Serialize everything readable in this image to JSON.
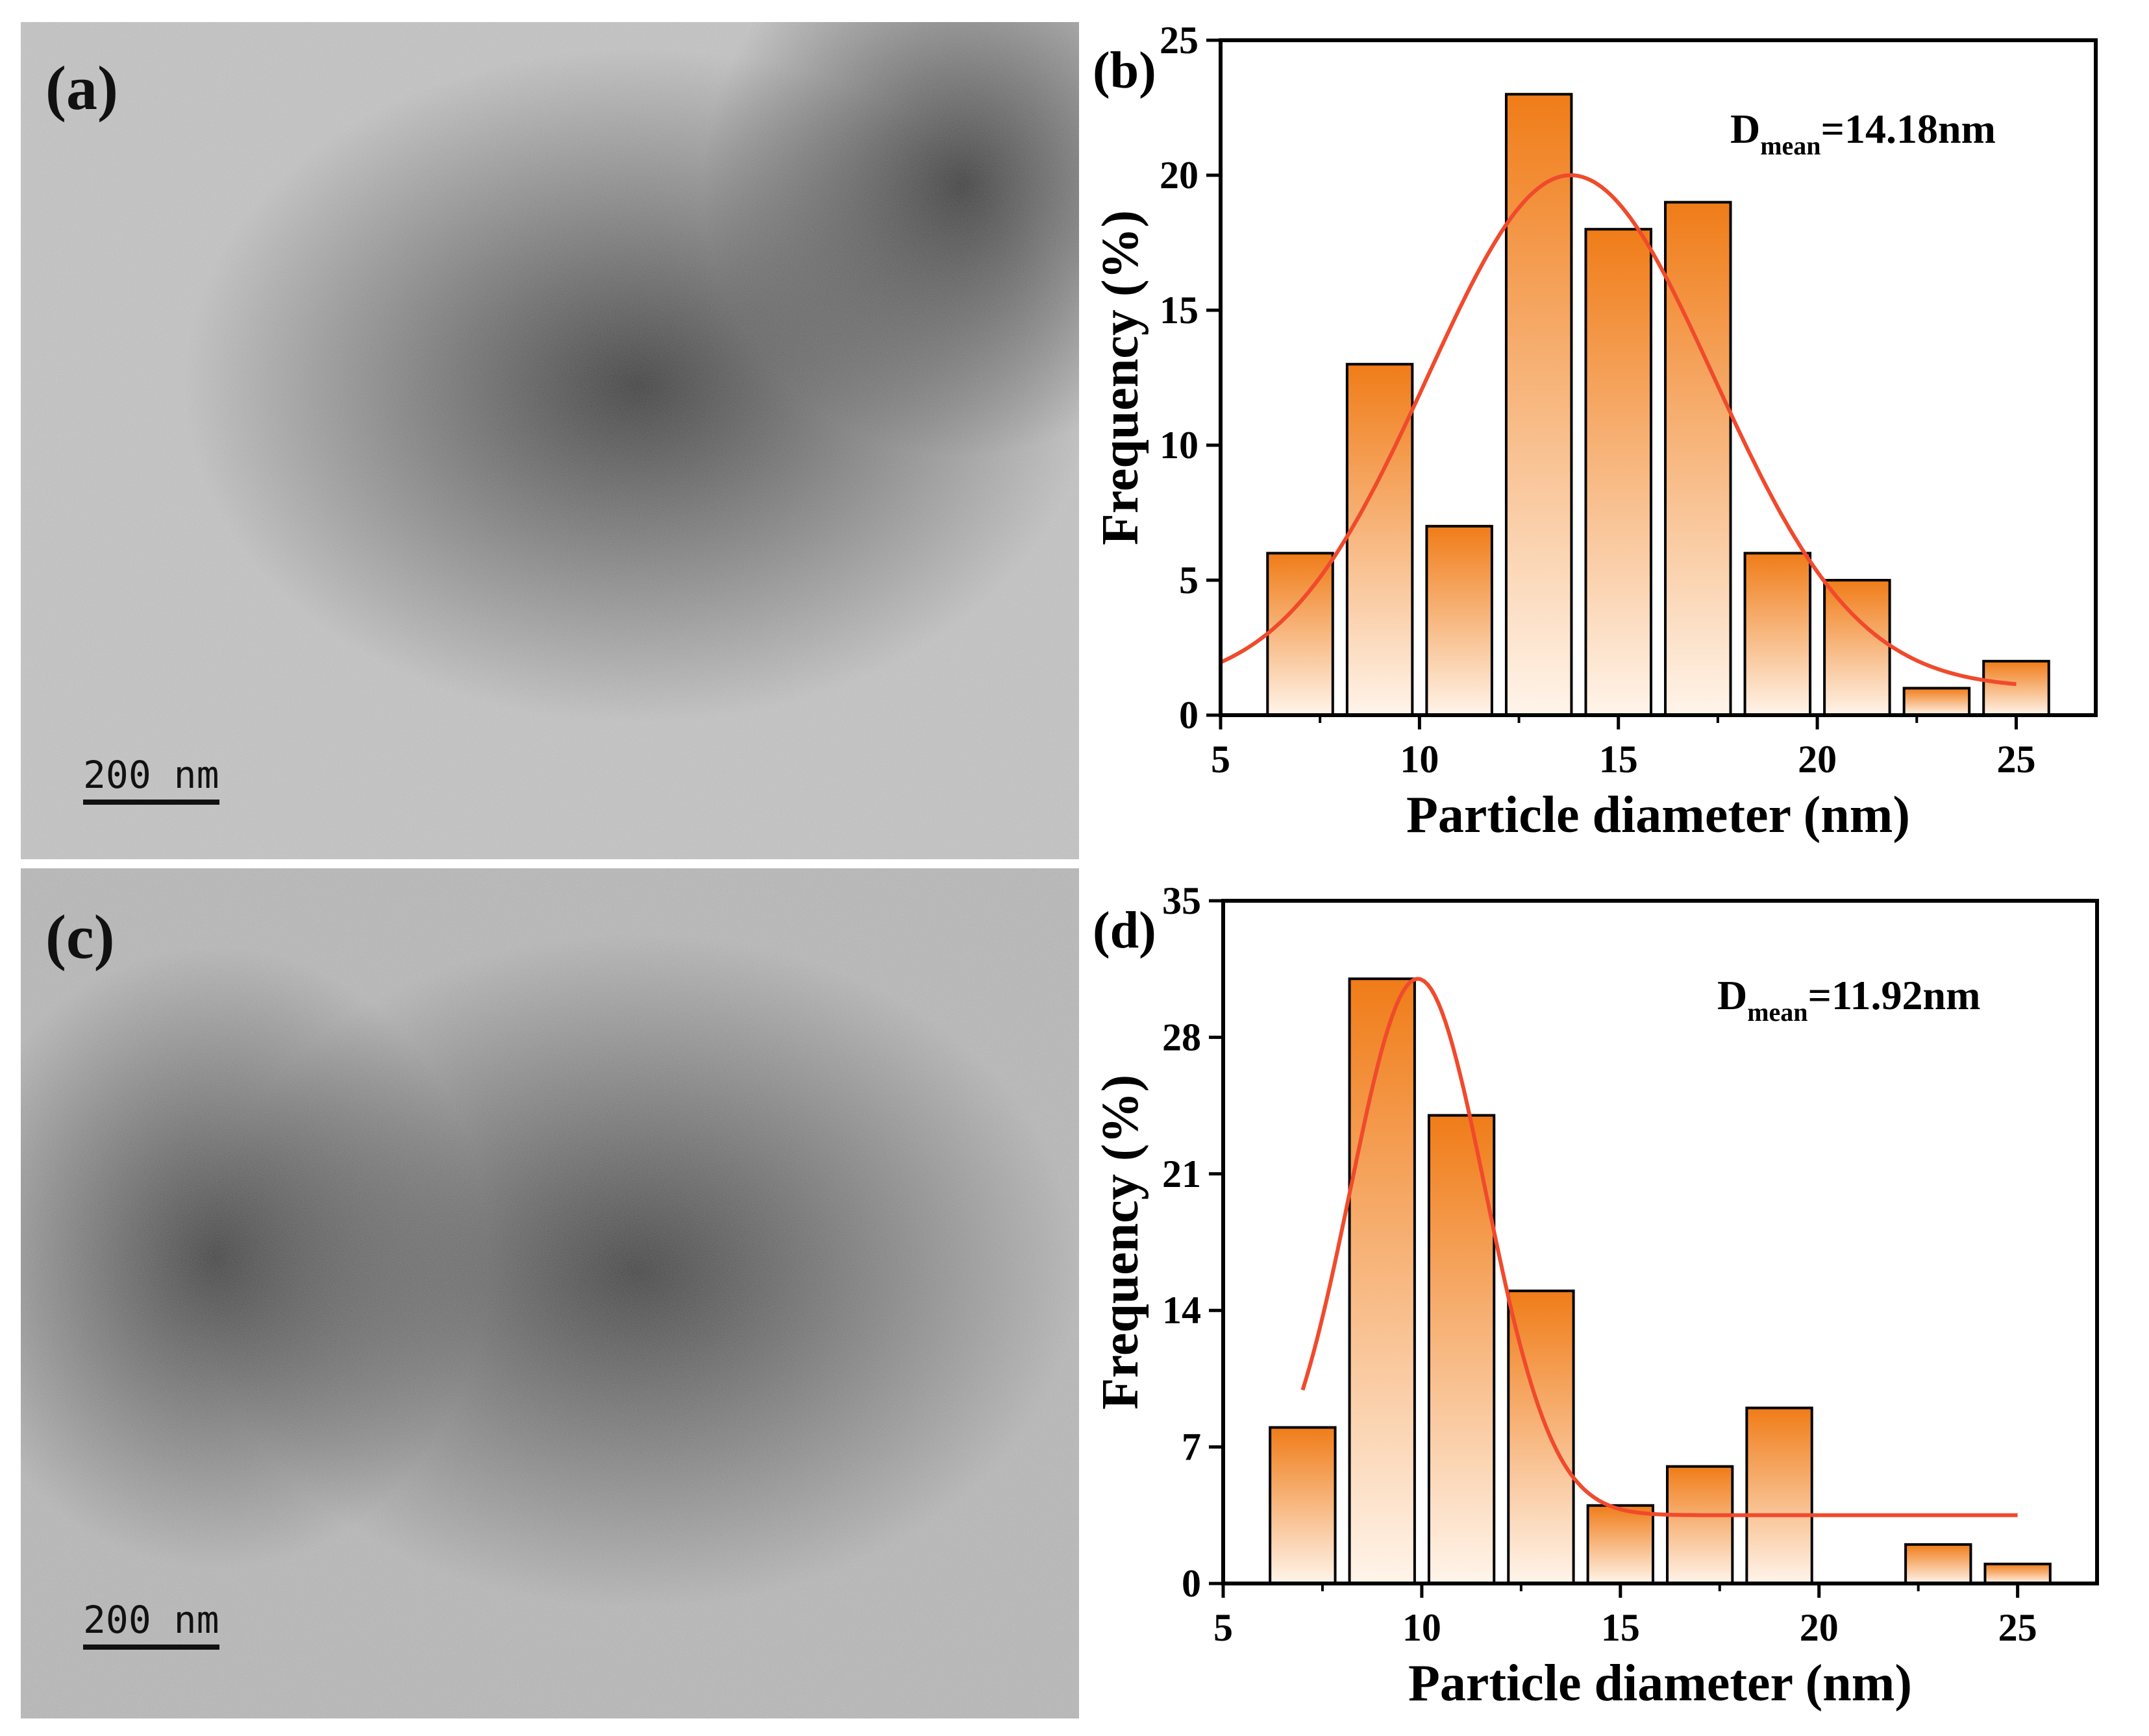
{
  "panels": [
    {
      "letter": "(a)",
      "scale_label": "200  nm"
    },
    {
      "letter": "(c)",
      "scale_label": "200  nm"
    }
  ],
  "colors": {
    "bar_top": "#f07c18",
    "bar_bottom": "#fff4ea",
    "fit": "#f04a2c",
    "axis": "#000000"
  },
  "chart_data": [
    {
      "panel": "(b)",
      "type": "bar",
      "x": [
        7,
        9,
        11,
        13,
        15,
        17,
        19,
        21,
        23,
        25
      ],
      "values": [
        6,
        13,
        7,
        23,
        18,
        19,
        6,
        5,
        1,
        2
      ],
      "xlim": [
        5,
        27
      ],
      "ylim": [
        0,
        25
      ],
      "xticks": [
        5,
        10,
        15,
        20,
        25
      ],
      "yticks": [
        0,
        5,
        10,
        15,
        20,
        25
      ],
      "xlabel": "Particle diameter (nm)",
      "ylabel": "Frequency (%)",
      "annotation": {
        "main": "D",
        "sub": "mean",
        "rest": "=14.18nm"
      },
      "fit": {
        "type": "gaussian",
        "y0": 1.0,
        "A": 19.0,
        "xc": 13.8,
        "w": 7.2,
        "xrange": [
          5,
          25
        ]
      }
    },
    {
      "panel": "(d)",
      "type": "bar",
      "x": [
        7,
        9,
        11,
        13,
        15,
        17,
        19,
        21,
        23,
        25
      ],
      "values": [
        8,
        31,
        24,
        15,
        4,
        6,
        9,
        0,
        2,
        1
      ],
      "xlim": [
        5,
        27
      ],
      "ylim": [
        0,
        35
      ],
      "xticks": [
        5,
        10,
        15,
        20,
        25
      ],
      "yticks": [
        0,
        7,
        14,
        21,
        28,
        35
      ],
      "xlabel": "Particle diameter (nm)",
      "ylabel": "Frequency (%)",
      "annotation": {
        "main": "D",
        "sub": "mean",
        "rest": "=11.92nm"
      },
      "fit": {
        "type": "gaussian",
        "y0": 3.5,
        "A": 27.5,
        "xc": 9.9,
        "w": 3.4,
        "xrange": [
          7,
          25
        ]
      }
    }
  ]
}
